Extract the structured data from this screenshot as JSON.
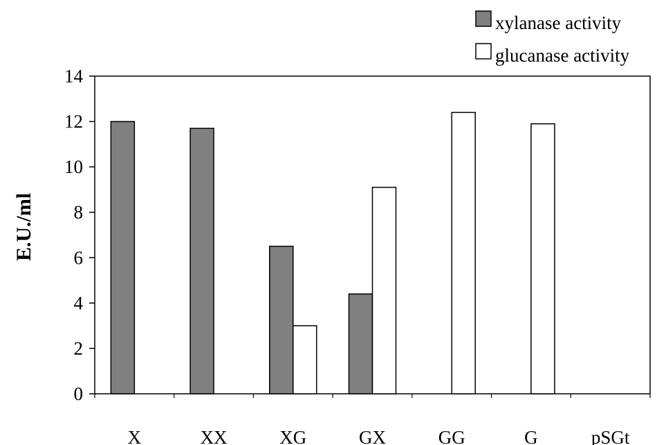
{
  "chart_data": {
    "type": "bar",
    "title": "",
    "xlabel": "",
    "ylabel": "E.U./ml",
    "ylim": [
      0,
      14
    ],
    "yticks": [
      0,
      2,
      4,
      6,
      8,
      10,
      12,
      14
    ],
    "grid": false,
    "legend_position": "top-right",
    "categories": [
      "X",
      "XX",
      "XG",
      "GX",
      "GG",
      "G",
      "pSGt"
    ],
    "series": [
      {
        "name": "xylanase activity",
        "color": "#808080",
        "values": [
          12.0,
          11.7,
          6.5,
          4.4,
          0,
          0,
          0
        ]
      },
      {
        "name": "glucanase activity",
        "color": "#ffffff",
        "values": [
          0,
          0,
          3.0,
          9.1,
          12.4,
          11.9,
          0
        ]
      }
    ]
  }
}
